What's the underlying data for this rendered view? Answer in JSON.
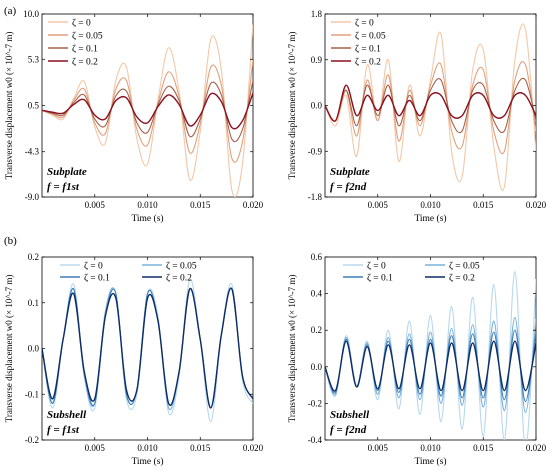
{
  "figure": {
    "panel_a_label": "(a)",
    "panel_b_label": "(b)"
  },
  "chart_data": [
    {
      "id": "a1",
      "type": "line",
      "xlabel": "Time (s)",
      "ylabel": "Transverse displacement w0 (× 10^-7 m)",
      "xlim": [
        0,
        0.02
      ],
      "ylim": [
        -9.0,
        10.0
      ],
      "xticks": [
        0.005,
        0.01,
        0.015,
        0.02
      ],
      "xtick_labels": [
        "0.005",
        "0.010",
        "0.015",
        "0.020"
      ],
      "yticks": [
        -9.0,
        -4.3,
        0.5,
        5.3,
        10.0
      ],
      "ytick_labels": [
        "-9.0",
        "-4.3",
        "0.5",
        "5.3",
        "10.0"
      ],
      "legend_position": "top-left",
      "annotation": [
        "Subplate",
        "f = f1st"
      ],
      "series": [
        {
          "name": "ζ = 0",
          "color": "#f3c8a8",
          "x": [
            0.0,
            0.001,
            0.002,
            0.003,
            0.004,
            0.005,
            0.006,
            0.007,
            0.008,
            0.009,
            0.01,
            0.011,
            0.012,
            0.013,
            0.014,
            0.015,
            0.016,
            0.017,
            0.018,
            0.019,
            0.02
          ],
          "y": [
            0.0,
            -0.5,
            -0.9,
            1.2,
            3.0,
            -1.7,
            -3.4,
            3.1,
            4.5,
            -3.0,
            -5.6,
            1.1,
            6.5,
            1.9,
            -7.2,
            -2.2,
            7.4,
            4.2,
            -8.3,
            -5.6,
            8.9
          ]
        },
        {
          "name": "ζ = 0.05",
          "color": "#e0a07e",
          "x": [
            0.0,
            0.001,
            0.002,
            0.003,
            0.004,
            0.005,
            0.006,
            0.007,
            0.008,
            0.009,
            0.01,
            0.011,
            0.012,
            0.013,
            0.014,
            0.015,
            0.016,
            0.017,
            0.018,
            0.019,
            0.02
          ],
          "y": [
            0.0,
            -0.4,
            -0.7,
            1.0,
            2.2,
            -1.3,
            -2.4,
            2.2,
            3.1,
            -2.0,
            -3.6,
            0.8,
            4.0,
            1.4,
            -4.4,
            -1.4,
            4.5,
            2.6,
            -5.0,
            -3.3,
            5.2
          ]
        },
        {
          "name": "ζ = 0.1",
          "color": "#a8604a",
          "x": [
            0.0,
            0.001,
            0.002,
            0.003,
            0.004,
            0.005,
            0.006,
            0.007,
            0.008,
            0.009,
            0.01,
            0.011,
            0.012,
            0.013,
            0.014,
            0.015,
            0.016,
            0.017,
            0.018,
            0.019,
            0.02
          ],
          "y": [
            0.0,
            -0.3,
            -0.5,
            0.8,
            1.6,
            -0.9,
            -1.6,
            1.5,
            2.0,
            -1.3,
            -2.3,
            0.6,
            2.5,
            1.0,
            -2.7,
            -0.9,
            2.8,
            1.6,
            -3.0,
            -2.0,
            3.1
          ]
        },
        {
          "name": "ζ = 0.2",
          "color": "#8c1020",
          "x": [
            0.0,
            0.001,
            0.002,
            0.003,
            0.004,
            0.005,
            0.006,
            0.007,
            0.008,
            0.009,
            0.01,
            0.011,
            0.012,
            0.013,
            0.014,
            0.015,
            0.016,
            0.017,
            0.018,
            0.019,
            0.02
          ],
          "y": [
            0.0,
            -0.2,
            -0.3,
            0.6,
            1.1,
            -0.5,
            -0.9,
            1.0,
            1.3,
            -0.7,
            -1.3,
            0.4,
            1.6,
            0.6,
            -1.6,
            -0.5,
            1.7,
            0.9,
            -1.8,
            -1.1,
            1.8
          ]
        }
      ]
    },
    {
      "id": "a2",
      "type": "line",
      "xlabel": "Time (s)",
      "ylabel": "Transverse displacement w0 (× 10^-7 m)",
      "xlim": [
        0,
        0.02
      ],
      "ylim": [
        -1.8,
        1.8
      ],
      "xticks": [
        0.005,
        0.01,
        0.015,
        0.02
      ],
      "xtick_labels": [
        "0.005",
        "0.010",
        "0.015",
        "0.020"
      ],
      "yticks": [
        -1.8,
        -0.9,
        0.0,
        0.9,
        1.8
      ],
      "ytick_labels": [
        "-1.8",
        "-0.9",
        "0.0",
        "0.9",
        "1.8"
      ],
      "legend_position": "top-left",
      "annotation": [
        "Subplate",
        "f = f2nd"
      ],
      "series": [
        {
          "name": "ζ = 0",
          "color": "#f3c8a8",
          "x": [
            0.0,
            0.001,
            0.002,
            0.003,
            0.004,
            0.005,
            0.006,
            0.007,
            0.008,
            0.009,
            0.01,
            0.011,
            0.012,
            0.013,
            0.014,
            0.015,
            0.016,
            0.017,
            0.018,
            0.019,
            0.02
          ],
          "y": [
            0.0,
            -0.4,
            0.2,
            -1.0,
            0.8,
            -0.3,
            0.9,
            -1.1,
            0.4,
            -0.6,
            0.5,
            1.4,
            -0.9,
            -1.4,
            0.7,
            1.1,
            -0.8,
            -1.6,
            0.9,
            1.5,
            -0.9
          ]
        },
        {
          "name": "ζ = 0.05",
          "color": "#e0a07e",
          "x": [
            0.0,
            0.001,
            0.002,
            0.003,
            0.004,
            0.005,
            0.006,
            0.007,
            0.008,
            0.009,
            0.01,
            0.011,
            0.012,
            0.013,
            0.014,
            0.015,
            0.016,
            0.017,
            0.018,
            0.019,
            0.02
          ],
          "y": [
            0.0,
            -0.3,
            0.3,
            -0.6,
            0.5,
            -0.3,
            0.6,
            -0.7,
            0.3,
            -0.4,
            0.4,
            0.8,
            -0.5,
            -0.8,
            0.4,
            0.7,
            -0.5,
            -0.9,
            0.5,
            0.8,
            -0.5
          ]
        },
        {
          "name": "ζ = 0.1",
          "color": "#a8604a",
          "x": [
            0.0,
            0.001,
            0.002,
            0.003,
            0.004,
            0.005,
            0.006,
            0.007,
            0.008,
            0.009,
            0.01,
            0.011,
            0.012,
            0.013,
            0.014,
            0.015,
            0.016,
            0.017,
            0.018,
            0.019,
            0.02
          ],
          "y": [
            0.0,
            -0.3,
            0.3,
            -0.4,
            0.4,
            -0.2,
            0.4,
            -0.4,
            0.2,
            -0.3,
            0.3,
            0.5,
            -0.3,
            -0.5,
            0.3,
            0.4,
            -0.3,
            -0.5,
            0.3,
            0.5,
            -0.3
          ]
        },
        {
          "name": "ζ = 0.2",
          "color": "#8c1020",
          "x": [
            0.0,
            0.001,
            0.002,
            0.003,
            0.004,
            0.005,
            0.006,
            0.007,
            0.008,
            0.009,
            0.01,
            0.011,
            0.012,
            0.013,
            0.014,
            0.015,
            0.016,
            0.017,
            0.018,
            0.019,
            0.02
          ],
          "y": [
            0.0,
            -0.3,
            0.4,
            -0.2,
            0.2,
            -0.1,
            0.2,
            -0.2,
            0.1,
            -0.2,
            0.2,
            0.2,
            -0.2,
            -0.2,
            0.2,
            0.2,
            -0.2,
            -0.2,
            0.2,
            0.2,
            -0.2
          ]
        }
      ]
    },
    {
      "id": "b1",
      "type": "line",
      "xlabel": "Time (s)",
      "ylabel": "Transverse displacement w0 (× 10^-7 m)",
      "xlim": [
        0,
        0.02
      ],
      "ylim": [
        -0.2,
        0.2
      ],
      "xticks": [
        0.005,
        0.01,
        0.015,
        0.02
      ],
      "xtick_labels": [
        "0.005",
        "0.010",
        "0.015",
        "0.020"
      ],
      "yticks": [
        -0.2,
        -0.1,
        0.0,
        0.1,
        0.2
      ],
      "ytick_labels": [
        "-0.2",
        "-0.1",
        "0.0",
        "0.1",
        "0.2"
      ],
      "legend_position": "top-center",
      "annotation": [
        "Subshell",
        "f = f1st"
      ],
      "series": [
        {
          "name": "ζ = 0",
          "color": "#b8d8ee",
          "x": [
            0.0,
            0.001,
            0.002,
            0.003,
            0.004,
            0.005,
            0.006,
            0.007,
            0.008,
            0.009,
            0.01,
            0.011,
            0.012,
            0.013,
            0.014,
            0.015,
            0.016,
            0.017,
            0.018,
            0.019,
            0.02
          ],
          "y": [
            0.0,
            -0.13,
            0.02,
            0.14,
            -0.06,
            -0.13,
            0.08,
            0.12,
            -0.11,
            -0.1,
            0.12,
            0.07,
            -0.14,
            -0.06,
            0.15,
            0.02,
            -0.16,
            0.03,
            0.14,
            -0.07,
            -0.12
          ]
        },
        {
          "name": "ζ = 0.05",
          "color": "#7bb0da",
          "x": [
            0.0,
            0.001,
            0.002,
            0.003,
            0.004,
            0.005,
            0.006,
            0.007,
            0.008,
            0.009,
            0.01,
            0.011,
            0.012,
            0.013,
            0.014,
            0.015,
            0.016,
            0.017,
            0.018,
            0.019,
            0.02
          ],
          "y": [
            0.0,
            -0.12,
            0.02,
            0.13,
            -0.06,
            -0.12,
            0.08,
            0.12,
            -0.1,
            -0.09,
            0.12,
            0.06,
            -0.13,
            -0.05,
            0.13,
            0.02,
            -0.13,
            0.03,
            0.13,
            -0.06,
            -0.11
          ]
        },
        {
          "name": "ζ = 0.1",
          "color": "#3f7fb6",
          "x": [
            0.0,
            0.001,
            0.002,
            0.003,
            0.004,
            0.005,
            0.006,
            0.007,
            0.008,
            0.009,
            0.01,
            0.011,
            0.012,
            0.013,
            0.014,
            0.015,
            0.016,
            0.017,
            0.018,
            0.019,
            0.02
          ],
          "y": [
            0.0,
            -0.12,
            0.02,
            0.13,
            -0.05,
            -0.12,
            0.07,
            0.12,
            -0.1,
            -0.09,
            0.12,
            0.06,
            -0.12,
            -0.05,
            0.13,
            0.02,
            -0.13,
            0.03,
            0.13,
            -0.06,
            -0.11
          ]
        },
        {
          "name": "ζ = 0.2",
          "color": "#0f2c66",
          "x": [
            0.0,
            0.001,
            0.002,
            0.003,
            0.004,
            0.005,
            0.006,
            0.007,
            0.008,
            0.009,
            0.01,
            0.011,
            0.012,
            0.013,
            0.014,
            0.015,
            0.016,
            0.017,
            0.018,
            0.019,
            0.02
          ],
          "y": [
            0.0,
            -0.11,
            0.02,
            0.12,
            -0.05,
            -0.11,
            0.07,
            0.11,
            -0.09,
            -0.09,
            0.11,
            0.06,
            -0.12,
            -0.05,
            0.13,
            0.02,
            -0.13,
            0.03,
            0.13,
            -0.06,
            -0.11
          ]
        }
      ]
    },
    {
      "id": "b2",
      "type": "line",
      "xlabel": "Time (s)",
      "ylabel": "Transverse displacement w0 (× 10^-7 m)",
      "xlim": [
        0,
        0.02
      ],
      "ylim": [
        -0.4,
        0.6
      ],
      "xticks": [
        0.005,
        0.01,
        0.015,
        0.02
      ],
      "xtick_labels": [
        "0.005",
        "0.010",
        "0.015",
        "0.020"
      ],
      "yticks": [
        -0.4,
        -0.2,
        0.0,
        0.2,
        0.4,
        0.6
      ],
      "ytick_labels": [
        "-0.4",
        "-0.2",
        "0.0",
        "0.2",
        "0.4",
        "0.6"
      ],
      "legend_position": "top-center",
      "annotation": [
        "Subshell",
        "f = f2nd"
      ],
      "series": [
        {
          "name": "ζ = 0",
          "color": "#b8d8ee",
          "x": [
            0.0,
            0.001,
            0.002,
            0.003,
            0.004,
            0.005,
            0.006,
            0.007,
            0.008,
            0.009,
            0.01,
            0.011,
            0.012,
            0.013,
            0.014,
            0.015,
            0.016,
            0.017,
            0.018,
            0.019,
            0.02
          ],
          "y": [
            0.0,
            -0.16,
            0.17,
            -0.1,
            0.14,
            -0.18,
            0.2,
            -0.23,
            0.25,
            -0.26,
            0.28,
            -0.3,
            0.33,
            -0.34,
            0.38,
            -0.38,
            0.45,
            -0.4,
            0.52,
            -0.45,
            0.48
          ]
        },
        {
          "name": "ζ = 0.05",
          "color": "#7bb0da",
          "x": [
            0.0,
            0.001,
            0.002,
            0.003,
            0.004,
            0.005,
            0.006,
            0.007,
            0.008,
            0.009,
            0.01,
            0.011,
            0.012,
            0.013,
            0.014,
            0.015,
            0.016,
            0.017,
            0.018,
            0.019,
            0.02
          ],
          "y": [
            0.0,
            -0.15,
            0.16,
            -0.11,
            0.13,
            -0.15,
            0.16,
            -0.17,
            0.18,
            -0.18,
            0.19,
            -0.2,
            0.21,
            -0.21,
            0.23,
            -0.22,
            0.25,
            -0.24,
            0.27,
            -0.25,
            0.26
          ]
        },
        {
          "name": "ζ = 0.1",
          "color": "#3f7fb6",
          "x": [
            0.0,
            0.001,
            0.002,
            0.003,
            0.004,
            0.005,
            0.006,
            0.007,
            0.008,
            0.009,
            0.01,
            0.011,
            0.012,
            0.013,
            0.014,
            0.015,
            0.016,
            0.017,
            0.018,
            0.019,
            0.02
          ],
          "y": [
            0.0,
            -0.14,
            0.15,
            -0.11,
            0.12,
            -0.13,
            0.14,
            -0.14,
            0.15,
            -0.15,
            0.15,
            -0.16,
            0.17,
            -0.17,
            0.18,
            -0.17,
            0.19,
            -0.18,
            0.2,
            -0.19,
            0.19
          ]
        },
        {
          "name": "ζ = 0.2",
          "color": "#0f2c66",
          "x": [
            0.0,
            0.001,
            0.002,
            0.003,
            0.004,
            0.005,
            0.006,
            0.007,
            0.008,
            0.009,
            0.01,
            0.011,
            0.012,
            0.013,
            0.014,
            0.015,
            0.016,
            0.017,
            0.018,
            0.019,
            0.02
          ],
          "y": [
            0.0,
            -0.13,
            0.14,
            -0.11,
            0.11,
            -0.12,
            0.12,
            -0.12,
            0.12,
            -0.12,
            0.13,
            -0.13,
            0.13,
            -0.13,
            0.13,
            -0.13,
            0.14,
            -0.13,
            0.14,
            -0.13,
            0.13
          ]
        }
      ]
    }
  ]
}
